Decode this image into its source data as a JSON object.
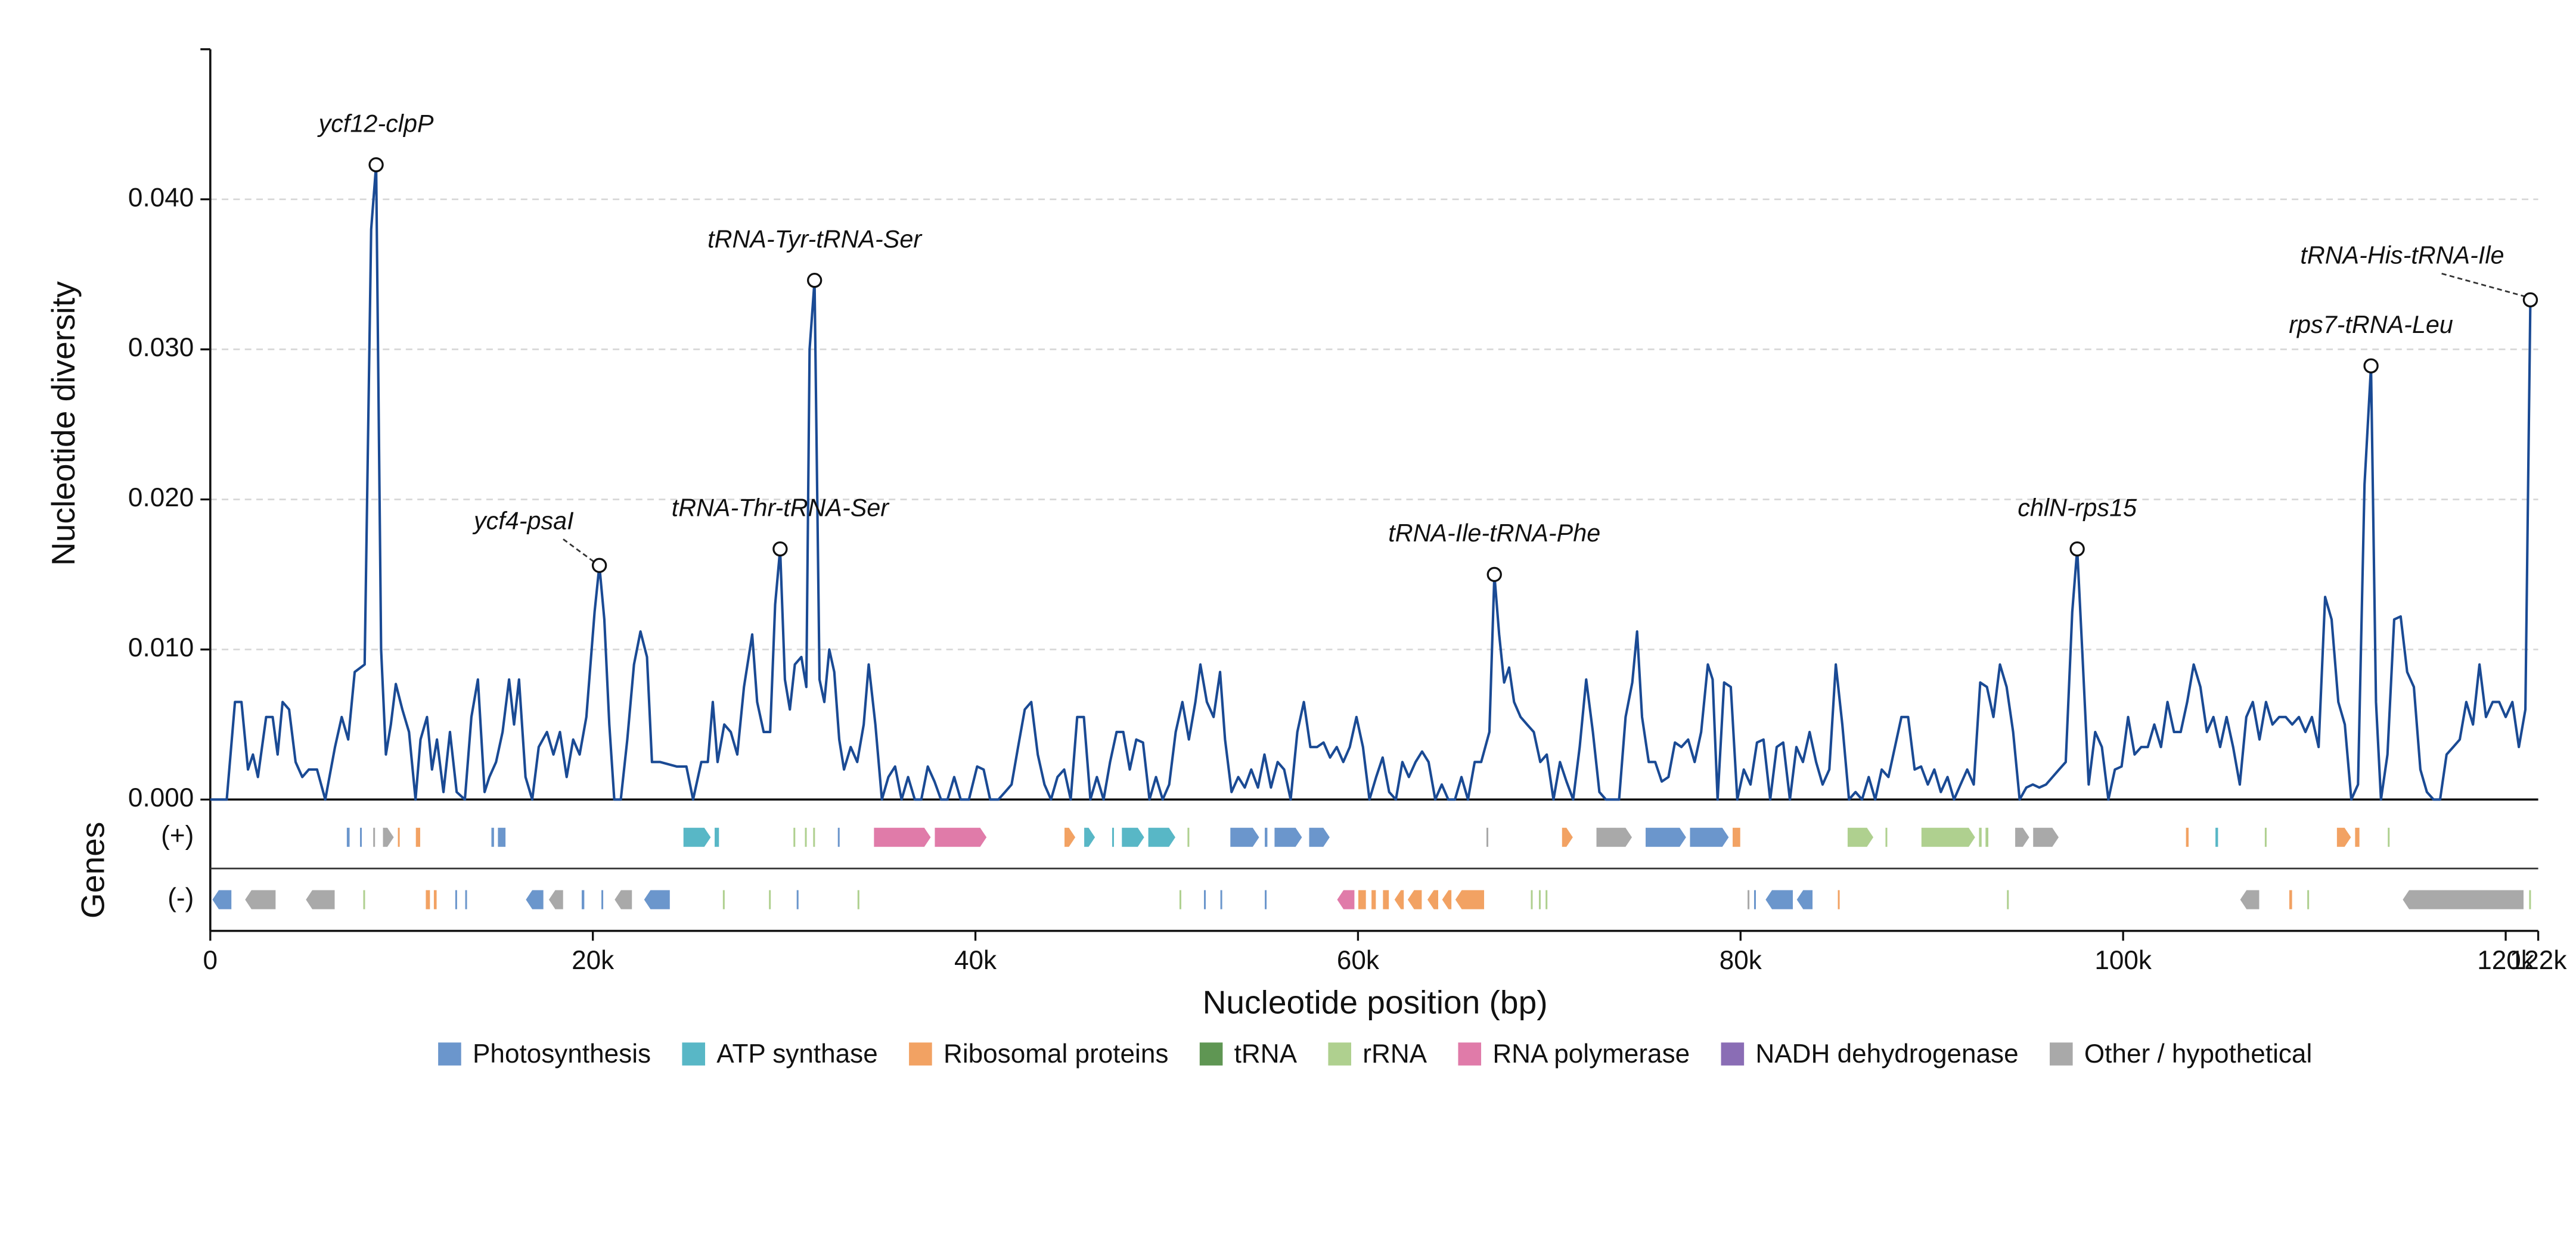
{
  "chart_data": {
    "type": "line",
    "ylabel": "Nucleotide diversity",
    "xlabel": "Nucleotide position (bp)",
    "color": "#1a4a94",
    "grid": true,
    "xlim": [
      0,
      121700
    ],
    "xticks": [
      0,
      {
        "value": 20000,
        "label": "20k"
      },
      {
        "value": 40000,
        "label": "40k"
      },
      {
        "value": 60000,
        "label": "60k"
      },
      {
        "value": 80000,
        "label": "80k"
      },
      {
        "value": 100000,
        "label": "100k"
      },
      {
        "value": 120000,
        "label": "120k"
      },
      {
        "value": 121700,
        "label": "122k"
      }
    ],
    "ylim": [
      0,
      0.05
    ],
    "yticks": [
      {
        "value": 0,
        "label": "0.000"
      },
      {
        "value": 0.01,
        "label": "0.010"
      },
      {
        "value": 0.02,
        "label": "0.020"
      },
      {
        "value": 0.03,
        "label": "0.030"
      },
      {
        "value": 0.04,
        "label": "0.040"
      }
    ],
    "x": [
      0,
      860,
      1290,
      1630,
      1970,
      2230,
      2490,
      2920,
      3260,
      3520,
      3780,
      4120,
      4460,
      4810,
      5150,
      5580,
      6010,
      6520,
      6870,
      7210,
      7550,
      8070,
      8410,
      8670,
      8930,
      9180,
      9440,
      9700,
      10040,
      10390,
      10730,
      10990,
      11330,
      11590,
      11850,
      12190,
      12530,
      12880,
      13310,
      13650,
      13990,
      14340,
      14590,
      14940,
      15280,
      15620,
      15880,
      16140,
      16480,
      16830,
      17170,
      17600,
      17940,
      18280,
      18630,
      18970,
      19310,
      19660,
      20090,
      20340,
      20600,
      20860,
      21120,
      21460,
      21800,
      22150,
      22490,
      22830,
      23090,
      23520,
      24380,
      24890,
      25240,
      25670,
      26010,
      26270,
      26520,
      26870,
      27210,
      27550,
      27900,
      28330,
      28590,
      28930,
      29270,
      29530,
      29790,
      30040,
      30300,
      30560,
      30900,
      31160,
      31330,
      31590,
      31850,
      32100,
      32360,
      32620,
      32880,
      33130,
      33480,
      33820,
      34160,
      34420,
      34770,
      35110,
      35450,
      35800,
      36140,
      36480,
      36830,
      37170,
      37510,
      37860,
      38200,
      38540,
      38890,
      39230,
      39660,
      40090,
      40430,
      40770,
      41200,
      41550,
      41890,
      42230,
      42580,
      42920,
      43260,
      43610,
      43950,
      44290,
      44640,
      44980,
      45320,
      45670,
      46010,
      46350,
      46700,
      47040,
      47380,
      47730,
      48070,
      48410,
      48760,
      49100,
      49440,
      49790,
      50130,
      50470,
      50820,
      51160,
      51500,
      51760,
      52100,
      52450,
      52790,
      53050,
      53390,
      53740,
      54080,
      54420,
      54770,
      55110,
      55450,
      55800,
      56140,
      56480,
      56830,
      57170,
      57510,
      57860,
      58200,
      58540,
      58890,
      59230,
      59570,
      59920,
      60260,
      60600,
      60950,
      61290,
      61630,
      61980,
      62320,
      62660,
      63010,
      63350,
      63690,
      64040,
      64380,
      64720,
      65070,
      65410,
      65750,
      66100,
      66440,
      66870,
      67130,
      67380,
      67640,
      67900,
      68160,
      68500,
      68840,
      69190,
      69530,
      69870,
      70220,
      70560,
      70900,
      71250,
      71590,
      71930,
      72280,
      72620,
      72960,
      73650,
      73990,
      74340,
      74590,
      74850,
      75200,
      75540,
      75880,
      76230,
      76570,
      76910,
      77260,
      77600,
      77940,
      78290,
      78540,
      78800,
      79140,
      79490,
      79830,
      80170,
      80520,
      80860,
      81200,
      81550,
      81890,
      82230,
      82580,
      82920,
      83260,
      83610,
      83950,
      84290,
      84640,
      84980,
      85320,
      85670,
      86010,
      86350,
      86700,
      87040,
      87380,
      87730,
      88070,
      88410,
      88760,
      89100,
      89440,
      89790,
      90130,
      90470,
      90820,
      91160,
      91500,
      91850,
      92190,
      92530,
      92880,
      93220,
      93560,
      93910,
      94250,
      94590,
      94940,
      95280,
      95620,
      95970,
      96310,
      96650,
      97000,
      97340,
      97600,
      97860,
      98200,
      98540,
      98890,
      99230,
      99570,
      99920,
      100260,
      100600,
      100950,
      101290,
      101630,
      101980,
      102320,
      102660,
      103010,
      103350,
      103690,
      104040,
      104380,
      104720,
      105070,
      105410,
      105750,
      106100,
      106440,
      106780,
      107130,
      107470,
      107810,
      108160,
      108500,
      108840,
      109190,
      109530,
      109870,
      110220,
      110560,
      110900,
      111250,
      111590,
      111930,
      112280,
      112620,
      112960,
      113220,
      113480,
      113820,
      114170,
      114510,
      114850,
      115200,
      115540,
      115880,
      116230,
      116570,
      116910,
      117260,
      117600,
      117940,
      118290,
      118630,
      118970,
      119320,
      119660,
      120000,
      120350,
      120690,
      121030,
      121290
    ],
    "values": [
      0,
      0,
      0.0065,
      0.0065,
      0.002,
      0.003,
      0.0015,
      0.0055,
      0.0055,
      0.003,
      0.0065,
      0.006,
      0.0025,
      0.0015,
      0.002,
      0.002,
      0,
      0.0035,
      0.0055,
      0.004,
      0.0085,
      0.009,
      0.038,
      0.0423,
      0.01,
      0.003,
      0.005,
      0.0077,
      0.006,
      0.0045,
      0,
      0.004,
      0.0055,
      0.002,
      0.004,
      0.0005,
      0.0045,
      0.0005,
      0,
      0.0055,
      0.008,
      0.0005,
      0.0015,
      0.0025,
      0.0045,
      0.008,
      0.005,
      0.008,
      0.0015,
      0,
      0.0035,
      0.0045,
      0.003,
      0.0045,
      0.0015,
      0.004,
      0.003,
      0.0055,
      0.0125,
      0.0156,
      0.012,
      0.005,
      0,
      0,
      0.004,
      0.009,
      0.0112,
      0.0095,
      0.0025,
      0.0025,
      0.0022,
      0.0022,
      0,
      0.0025,
      0.0025,
      0.0065,
      0.0025,
      0.005,
      0.0045,
      0.003,
      0.0075,
      0.011,
      0.0065,
      0.0045,
      0.0045,
      0.013,
      0.0167,
      0.008,
      0.006,
      0.009,
      0.0095,
      0.0075,
      0.03,
      0.0346,
      0.008,
      0.0065,
      0.01,
      0.0085,
      0.004,
      0.002,
      0.0035,
      0.0025,
      0.005,
      0.009,
      0.005,
      0,
      0.0015,
      0.0022,
      0,
      0.0015,
      0,
      0,
      0.0022,
      0.0012,
      0,
      0,
      0.0015,
      0,
      0,
      0.0022,
      0.002,
      0,
      0,
      0.0005,
      0.001,
      0.0035,
      0.006,
      0.0065,
      0.003,
      0.001,
      0,
      0.0015,
      0.002,
      0,
      0.0055,
      0.0055,
      0,
      0.0015,
      0,
      0.0025,
      0.0045,
      0.0045,
      0.002,
      0.004,
      0.0038,
      0,
      0.0015,
      0,
      0.001,
      0.0045,
      0.0065,
      0.004,
      0.0065,
      0.009,
      0.0065,
      0.0055,
      0.0085,
      0.004,
      0.0005,
      0.0015,
      0.0008,
      0.002,
      0.0008,
      0.003,
      0.0008,
      0.0025,
      0.002,
      0,
      0.0045,
      0.0065,
      0.0035,
      0.0035,
      0.0038,
      0.0028,
      0.0035,
      0.0025,
      0.0035,
      0.0055,
      0.0035,
      0,
      0.0015,
      0.0028,
      0.0005,
      0,
      0.0025,
      0.0015,
      0.0025,
      0.0032,
      0.0025,
      0,
      0.001,
      0,
      0,
      0.0015,
      0,
      0.0025,
      0.0025,
      0.0045,
      0.015,
      0.011,
      0.0078,
      0.0088,
      0.0065,
      0.0055,
      0.005,
      0.0045,
      0.0025,
      0.003,
      0,
      0.0025,
      0.0012,
      0,
      0.0035,
      0.008,
      0.0045,
      0.0005,
      0,
      0,
      0.0055,
      0.0078,
      0.0112,
      0.0055,
      0.0025,
      0.0025,
      0.0012,
      0.0015,
      0.0038,
      0.0035,
      0.004,
      0.0025,
      0.0045,
      0.009,
      0.008,
      0,
      0.0078,
      0.0075,
      0,
      0.002,
      0.001,
      0.0038,
      0.004,
      0,
      0.0035,
      0.0038,
      0,
      0.0035,
      0.0025,
      0.0045,
      0.0025,
      0.001,
      0.002,
      0.009,
      0.005,
      0,
      0.0005,
      0,
      0.0015,
      0,
      0.002,
      0.0015,
      0.0035,
      0.0055,
      0.0055,
      0.002,
      0.0022,
      0.001,
      0.002,
      0.0005,
      0.0015,
      0,
      0.001,
      0.002,
      0.001,
      0.0078,
      0.0075,
      0.0055,
      0.009,
      0.0075,
      0.0045,
      0,
      0.0008,
      0.001,
      0.0008,
      0.001,
      0.0015,
      0.002,
      0.0025,
      0.0125,
      0.0167,
      0.01,
      0.001,
      0.0045,
      0.0035,
      0,
      0.002,
      0.0022,
      0.0055,
      0.003,
      0.0035,
      0.0035,
      0.005,
      0.0035,
      0.0065,
      0.0045,
      0.0045,
      0.0065,
      0.009,
      0.0075,
      0.0045,
      0.0055,
      0.0035,
      0.0055,
      0.0035,
      0.001,
      0.0055,
      0.0065,
      0.004,
      0.0065,
      0.005,
      0.0055,
      0.0055,
      0.005,
      0.0055,
      0.0045,
      0.0055,
      0.0035,
      0.0135,
      0.012,
      0.0065,
      0.005,
      0,
      0.001,
      0.021,
      0.0289,
      0.0065,
      0,
      0.003,
      0.012,
      0.0122,
      0.0085,
      0.0075,
      0.002,
      0.0005,
      0,
      0,
      0.003,
      0.0035,
      0.004,
      0.0065,
      0.005,
      0.009,
      0.0055,
      0.0065,
      0.0065,
      0.0055,
      0.0065,
      0.0035,
      0.006,
      0.0333
    ],
    "annotations": [
      {
        "label": "ycf12-clpP",
        "x": 8670,
        "y": 0.0423
      },
      {
        "label": "ycf4-psaI",
        "x": 20340,
        "y": 0.0156
      },
      {
        "label": "tRNA-Thr-tRNA-Ser",
        "x": 29790,
        "y": 0.0167
      },
      {
        "label": "tRNA-Tyr-tRNA-Ser",
        "x": 31590,
        "y": 0.0346
      },
      {
        "label": "tRNA-Ile-tRNA-Phe",
        "x": 67130,
        "y": 0.015
      },
      {
        "label": "chlN-rps15",
        "x": 97600,
        "y": 0.0167
      },
      {
        "label": "rps7-tRNA-Leu",
        "x": 112960,
        "y": 0.0289
      },
      {
        "label": "tRNA-His-tRNA-Ile",
        "x": 121290,
        "y": 0.0333
      }
    ],
    "gene_groups": [
      {
        "name": "Photosynthesis",
        "color": "#6b96cc"
      },
      {
        "name": "ATP synthase",
        "color": "#58b7c6"
      },
      {
        "name": "Ribosomal proteins",
        "color": "#f2a263"
      },
      {
        "name": "tRNA",
        "color": "#5f9653"
      },
      {
        "name": "rRNA",
        "color": "#afd08f"
      },
      {
        "name": "RNA polymerase",
        "color": "#e07ba9"
      },
      {
        "name": "NADH dehydrogenase",
        "color": "#8a6db5"
      },
      {
        "name": "Other / hypothetical",
        "color": "#a9a9a9"
      }
    ],
    "gene_track": {
      "label": "Genes",
      "strands": [
        {
          "label": "(+)",
          "genes": [
            [
              7120,
              7300,
              0
            ],
            [
              7810,
              7900,
              0
            ],
            [
              8500,
              8580,
              7
            ],
            [
              9010,
              9610,
              7
            ],
            [
              9790,
              9870,
              2
            ],
            [
              10730,
              10990,
              2
            ],
            [
              14680,
              14850,
              0
            ],
            [
              15020,
              15450,
              0
            ],
            [
              24720,
              26180,
              1
            ],
            [
              26350,
              26610,
              1
            ],
            [
              30470,
              30560,
              4
            ],
            [
              31070,
              31160,
              4
            ],
            [
              31500,
              31590,
              4
            ],
            [
              32790,
              32880,
              0
            ],
            [
              34680,
              37680,
              5
            ],
            [
              37860,
              40600,
              5
            ],
            [
              44640,
              45240,
              2
            ],
            [
              45670,
              46270,
              1
            ],
            [
              47130,
              47210,
              1
            ],
            [
              47640,
              48840,
              1
            ],
            [
              49020,
              50470,
              1
            ],
            [
              51070,
              51160,
              4
            ],
            [
              53310,
              54850,
              0
            ],
            [
              55110,
              55280,
              0
            ],
            [
              55620,
              57090,
              0
            ],
            [
              57430,
              58540,
              0
            ],
            [
              66700,
              66780,
              7
            ],
            [
              70650,
              71250,
              2
            ],
            [
              72450,
              74340,
              7
            ],
            [
              75020,
              77170,
              0
            ],
            [
              77340,
              79400,
              0
            ],
            [
              79570,
              80000,
              2
            ],
            [
              85580,
              86960,
              4
            ],
            [
              87560,
              87650,
              4
            ],
            [
              89440,
              92280,
              4
            ],
            [
              92450,
              92620,
              4
            ],
            [
              92790,
              92970,
              4
            ],
            [
              94340,
              95110,
              7
            ],
            [
              95280,
              96650,
              7
            ],
            [
              103270,
              103440,
              2
            ],
            [
              104810,
              104980,
              1
            ],
            [
              107390,
              107470,
              4
            ],
            [
              111160,
              111930,
              2
            ],
            [
              112110,
              112370,
              2
            ],
            [
              113820,
              113910,
              4
            ]
          ]
        },
        {
          "label": "(-)",
          "genes": [
            [
              90,
              1120,
              0
            ],
            [
              1800,
              3430,
              7
            ],
            [
              4980,
              6520,
              7
            ],
            [
              7980,
              8070,
              4
            ],
            [
              11250,
              11500,
              2
            ],
            [
              11670,
              11850,
              2
            ],
            [
              12790,
              12880,
              0
            ],
            [
              13310,
              13390,
              0
            ],
            [
              16480,
              17430,
              0
            ],
            [
              17680,
              18460,
              7
            ],
            [
              19400,
              19570,
              0
            ],
            [
              20430,
              20520,
              0
            ],
            [
              21120,
              22060,
              7
            ],
            [
              22660,
              24040,
              0
            ],
            [
              26780,
              26870,
              4
            ],
            [
              29190,
              29270,
              4
            ],
            [
              30640,
              30730,
              0
            ],
            [
              33820,
              33910,
              4
            ],
            [
              50650,
              50730,
              4
            ],
            [
              51930,
              52020,
              0
            ],
            [
              52790,
              52880,
              0
            ],
            [
              55110,
              55200,
              0
            ],
            [
              58890,
              59830,
              5
            ],
            [
              60000,
              60430,
              2
            ],
            [
              60690,
              60950,
              2
            ],
            [
              61290,
              61630,
              2
            ],
            [
              61890,
              62410,
              2
            ],
            [
              62580,
              63350,
              2
            ],
            [
              63610,
              64210,
              2
            ],
            [
              64380,
              64900,
              2
            ],
            [
              65070,
              66610,
              2
            ],
            [
              69020,
              69100,
              4
            ],
            [
              69440,
              69530,
              4
            ],
            [
              69790,
              69870,
              4
            ],
            [
              80350,
              80430,
              7
            ],
            [
              80690,
              80780,
              0
            ],
            [
              81290,
              82750,
              0
            ],
            [
              82920,
              83780,
              0
            ],
            [
              85070,
              85150,
              2
            ],
            [
              93910,
              93990,
              4
            ],
            [
              106100,
              107130,
              7
            ],
            [
              108670,
              108850,
              2
            ],
            [
              109610,
              109700,
              4
            ],
            [
              114600,
              120950,
              7
            ],
            [
              121210,
              121290,
              4
            ]
          ]
        }
      ]
    }
  }
}
